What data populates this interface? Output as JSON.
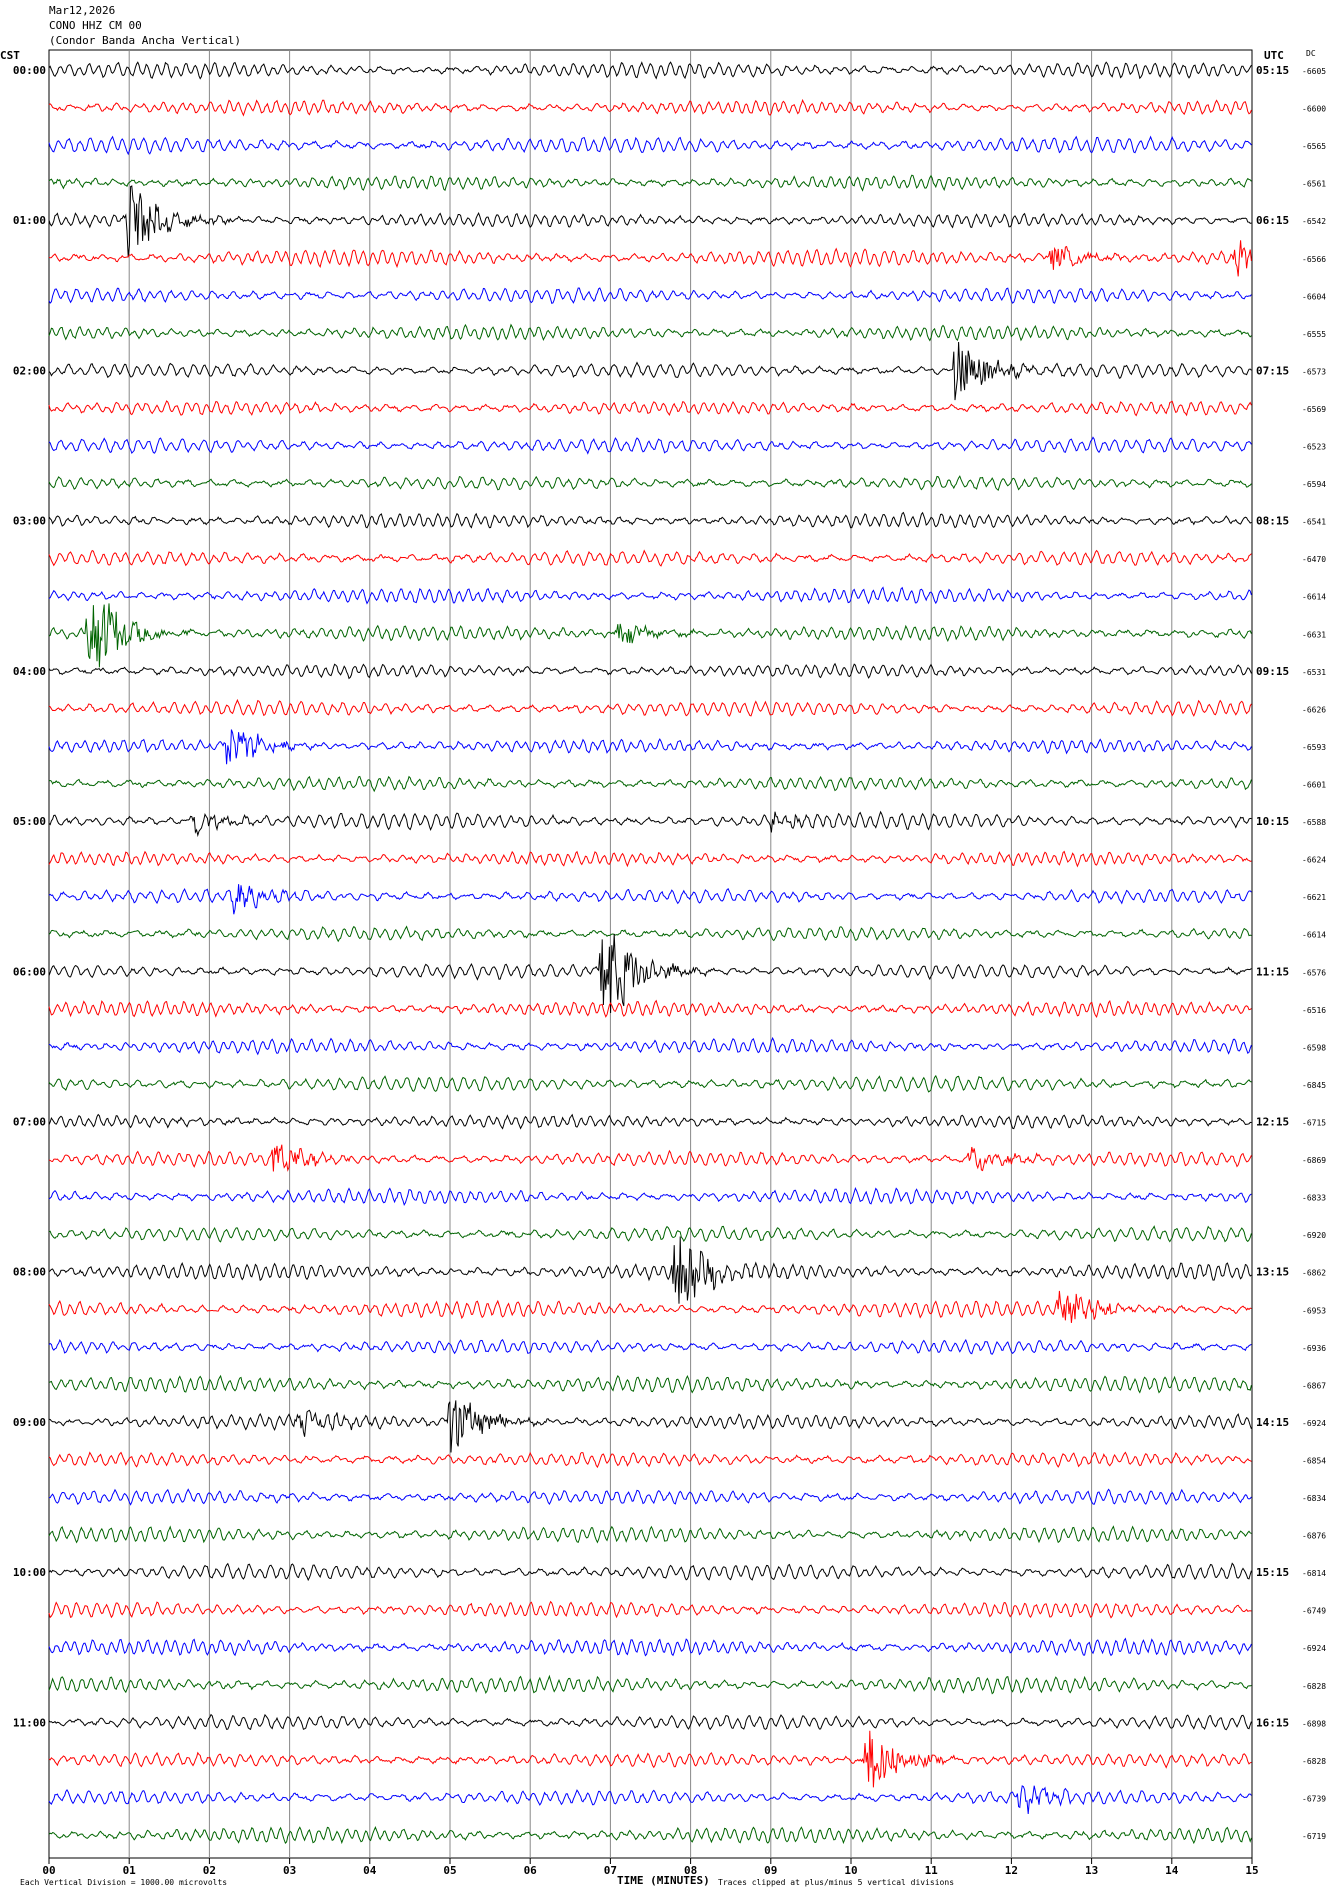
{
  "header": {
    "date": "Mar12,2026",
    "station": "CONO HHZ CM 00",
    "name": "(Condor Banda Ancha Vertical)"
  },
  "left_tz": "CST",
  "right_tz": "UTC",
  "dc_header": "DC",
  "footer": {
    "note_left": "Each Vertical Division = 1000.00 microvolts",
    "note_right": "Traces clipped at plus/minus 5 vertical divisions"
  },
  "colors": [
    "#000000",
    "#ff0000",
    "#0000ff",
    "#006400"
  ],
  "chart_data": {
    "type": "line",
    "title": "",
    "xlabel": "TIME (MINUTES)",
    "xlim": [
      0,
      15
    ],
    "x_ticks": [
      "00",
      "01",
      "02",
      "03",
      "04",
      "05",
      "06",
      "07",
      "08",
      "09",
      "10",
      "11",
      "12",
      "13",
      "14",
      "15"
    ],
    "rows": 48,
    "left_hours": [
      "00:00",
      "01:00",
      "02:00",
      "03:00",
      "04:00",
      "05:00",
      "06:00",
      "07:00",
      "08:00",
      "09:00",
      "10:00",
      "11:00"
    ],
    "right_hours": [
      "05:15",
      "06:15",
      "07:15",
      "08:15",
      "09:15",
      "10:15",
      "11:15",
      "12:15",
      "13:15",
      "14:15",
      "15:15",
      "16:15"
    ],
    "dc_values": [
      "-6605",
      "-6600",
      "-6565",
      "-6561",
      "-6542",
      "-6566",
      "-6604",
      "-6555",
      "-6573",
      "-6569",
      "-6523",
      "-6594",
      "-6541",
      "-6470",
      "-6614",
      "-6631",
      "-6531",
      "-6626",
      "-6593",
      "-6601",
      "-6588",
      "-6624",
      "-6621",
      "-6614",
      "-6576",
      "-6516",
      "-6598",
      "-6845",
      "-6715",
      "-6869",
      "-6833",
      "-6920",
      "-6862",
      "-6953",
      "-6936",
      "-6867",
      "-6924",
      "-6854",
      "-6834",
      "-6876",
      "-6814",
      "-6749",
      "-6924",
      "-6828",
      "-6898",
      "-6828",
      "-6739",
      "-6719"
    ],
    "events": [
      {
        "row": 4,
        "minute": 1.0,
        "amp": 5
      },
      {
        "row": 5,
        "minute": 12.5,
        "amp": 1.5
      },
      {
        "row": 5,
        "minute": 14.8,
        "amp": 2
      },
      {
        "row": 8,
        "minute": 11.3,
        "amp": 4
      },
      {
        "row": 15,
        "minute": 0.5,
        "amp": 6
      },
      {
        "row": 15,
        "minute": 7.1,
        "amp": 1.5
      },
      {
        "row": 18,
        "minute": 2.2,
        "amp": 3
      },
      {
        "row": 20,
        "minute": 1.8,
        "amp": 1.5
      },
      {
        "row": 20,
        "minute": 9.0,
        "amp": 1.2
      },
      {
        "row": 22,
        "minute": 2.3,
        "amp": 1.5
      },
      {
        "row": 24,
        "minute": 6.9,
        "amp": 7
      },
      {
        "row": 29,
        "minute": 2.8,
        "amp": 2
      },
      {
        "row": 29,
        "minute": 11.5,
        "amp": 1.5
      },
      {
        "row": 32,
        "minute": 7.8,
        "amp": 5
      },
      {
        "row": 33,
        "minute": 12.6,
        "amp": 3
      },
      {
        "row": 36,
        "minute": 5.0,
        "amp": 4
      },
      {
        "row": 36,
        "minute": 3.1,
        "amp": 2
      },
      {
        "row": 45,
        "minute": 10.2,
        "amp": 4
      },
      {
        "row": 46,
        "minute": 12.1,
        "amp": 1.8
      }
    ]
  }
}
